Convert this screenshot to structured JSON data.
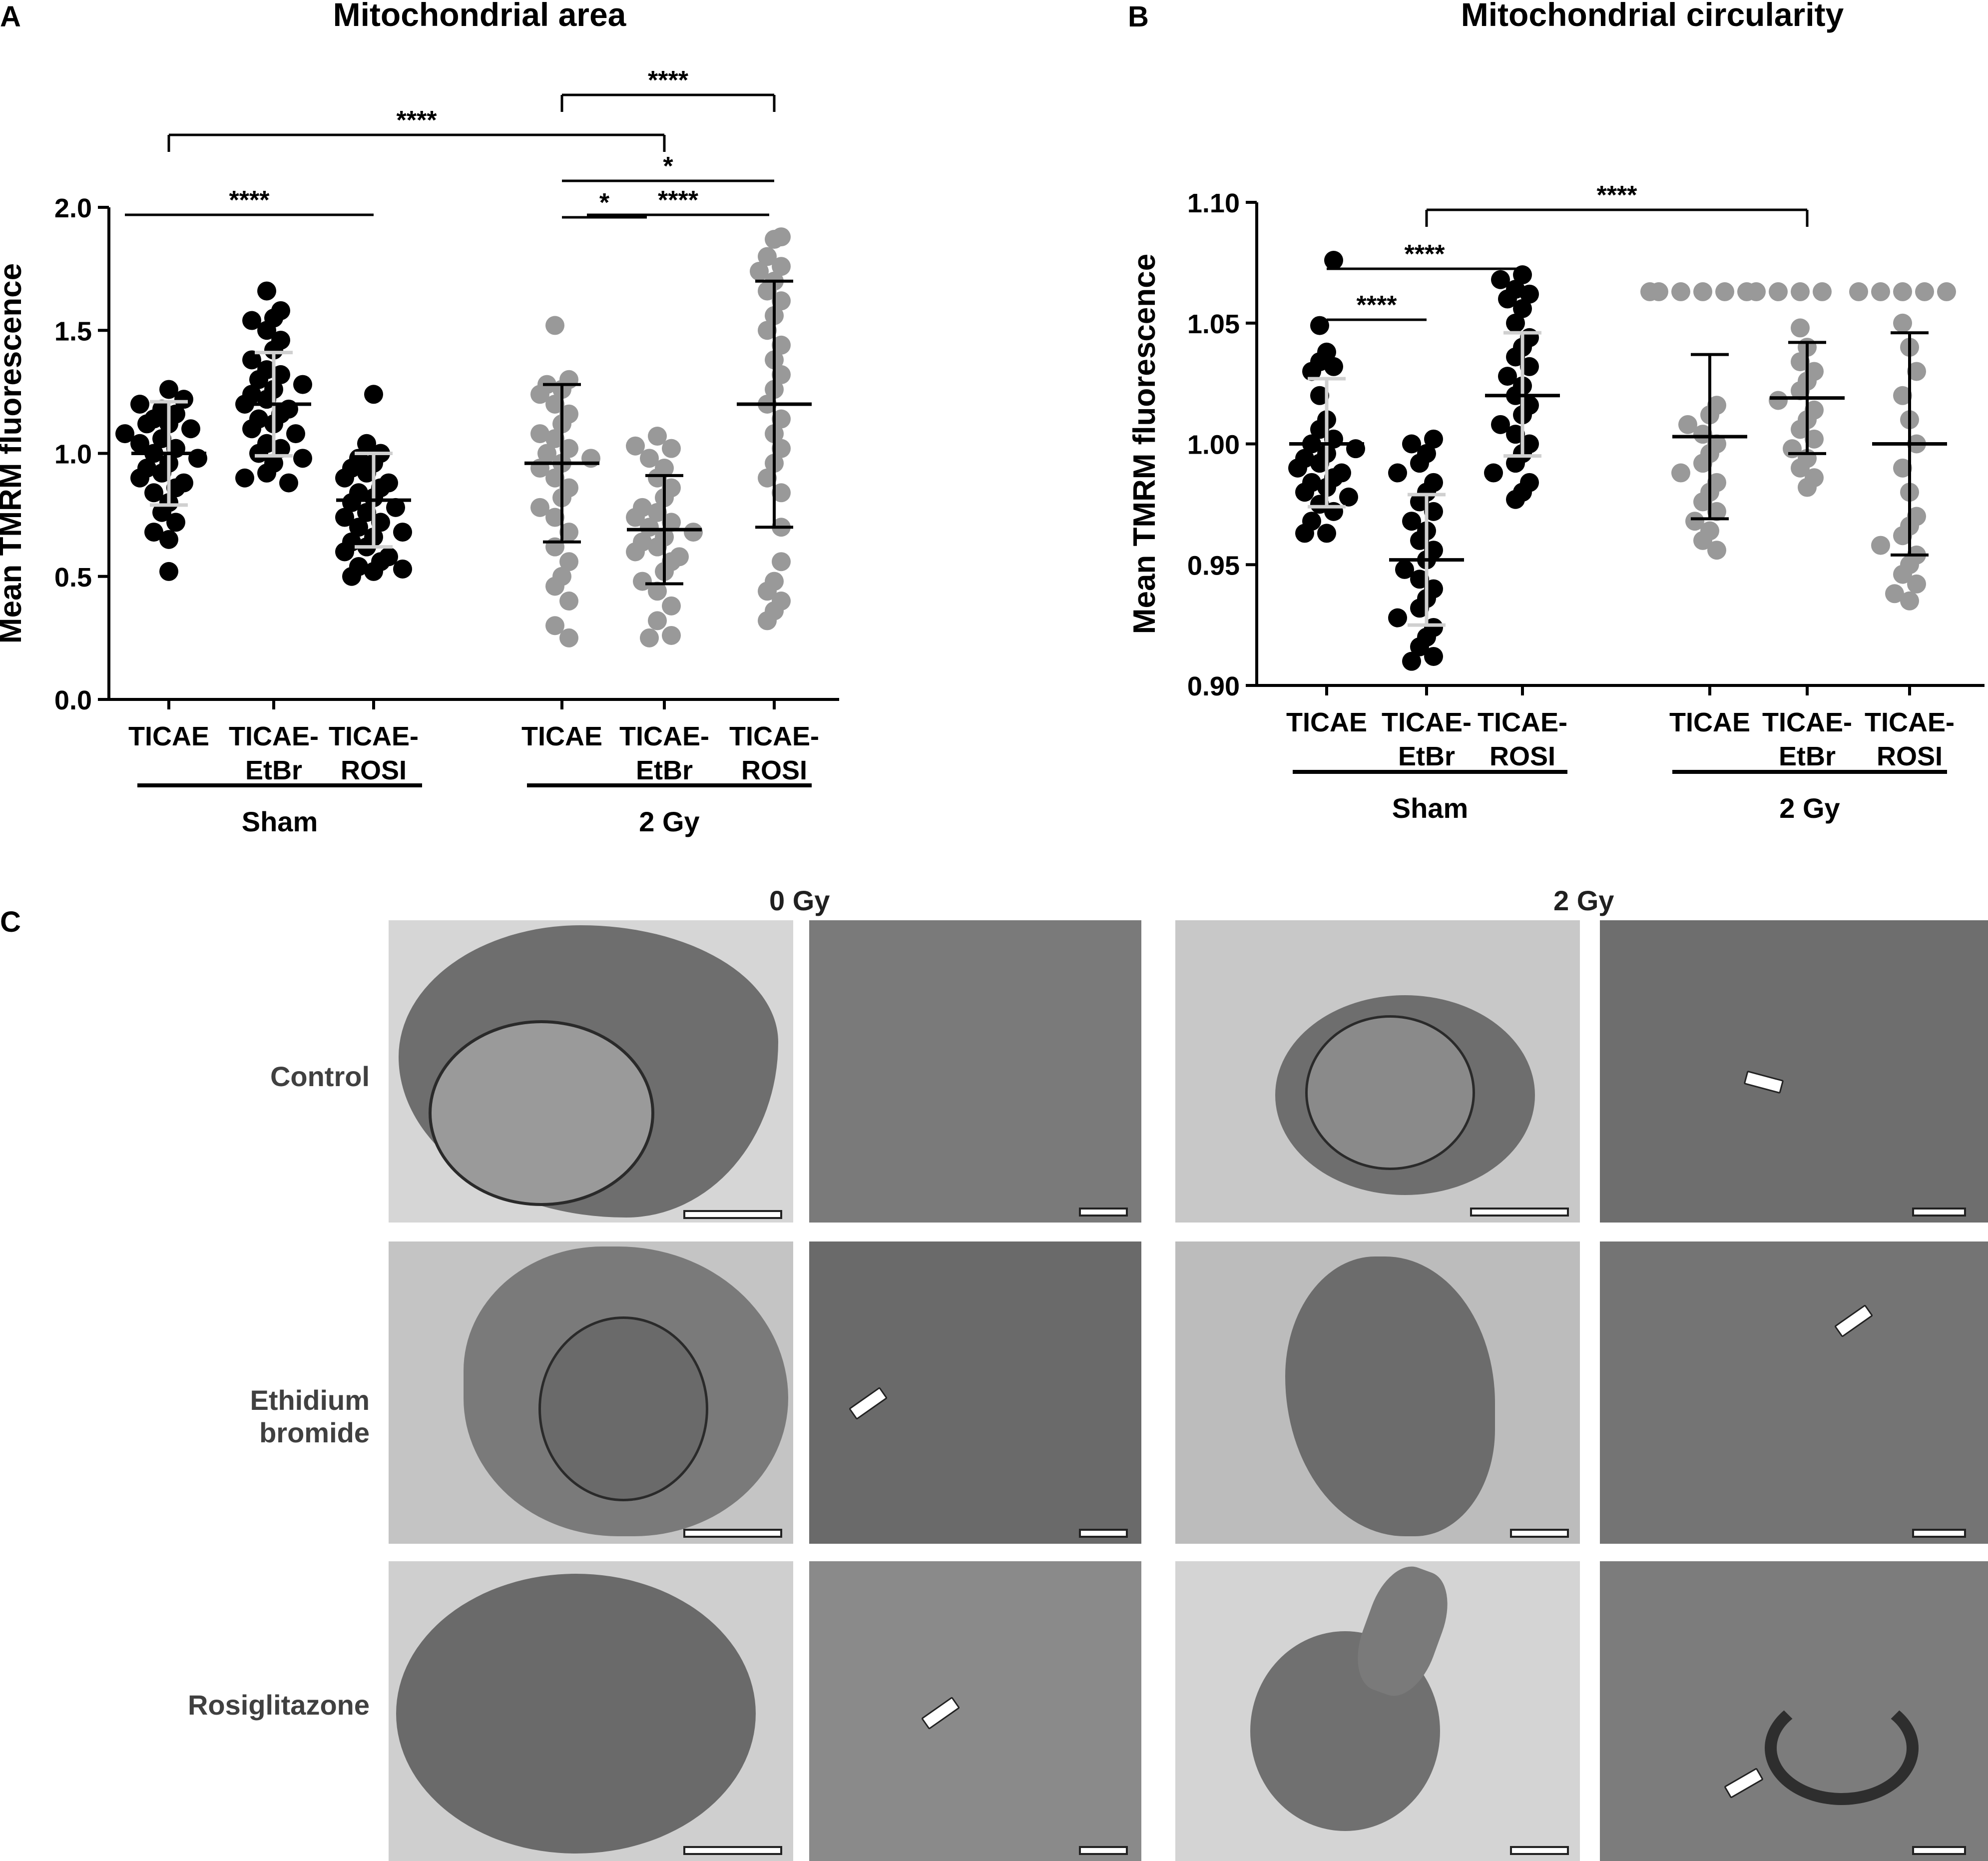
{
  "panels": {
    "a": {
      "letter": "A"
    },
    "b": {
      "letter": "B"
    },
    "c": {
      "letter": "C"
    }
  },
  "colors": {
    "sham_points": "#000000",
    "gy_points": "#999999",
    "sd_bars_sham": "#d0d0d0",
    "sd_bars_gy": "#000000"
  },
  "chart_data": [
    {
      "type": "scatter",
      "title": "Mitochondrial area",
      "ylabel": "Mean TMRM fluorescence",
      "xlabel": "",
      "ylim": [
        0.0,
        2.0
      ],
      "yticks": [
        "0.0",
        "0.5",
        "1.0",
        "1.5",
        "2.0"
      ],
      "groups": [
        "Sham",
        "2 Gy"
      ],
      "categories": [
        {
          "line1": "TICAE",
          "line2": "",
          "group": "Sham",
          "mean": 1.0,
          "sd_low": 0.79,
          "sd_high": 1.21,
          "values": [
            1.18,
            1.16,
            1.14,
            1.12,
            1.12,
            1.1,
            1.08,
            1.06,
            1.04,
            1.02,
            1.0,
            0.98,
            0.96,
            0.94,
            0.92,
            0.9,
            0.88,
            0.86,
            0.84,
            0.8,
            0.76,
            0.72,
            0.68,
            0.65,
            0.52,
            1.2,
            1.26,
            1.22
          ]
        },
        {
          "line1": "TICAE-",
          "line2": "EtBr",
          "group": "Sham",
          "mean": 1.2,
          "sd_low": 0.99,
          "sd_high": 1.41,
          "values": [
            1.66,
            1.58,
            1.55,
            1.54,
            1.5,
            1.46,
            1.42,
            1.38,
            1.34,
            1.32,
            1.3,
            1.28,
            1.26,
            1.24,
            1.22,
            1.2,
            1.18,
            1.16,
            1.14,
            1.12,
            1.1,
            1.08,
            1.04,
            1.02,
            1.0,
            0.98,
            0.96,
            0.92,
            0.9,
            0.88
          ]
        },
        {
          "line1": "TICAE-",
          "line2": "ROSI",
          "group": "Sham",
          "mean": 0.81,
          "sd_low": 0.62,
          "sd_high": 1.0,
          "values": [
            1.24,
            1.04,
            1.0,
            0.98,
            0.96,
            0.94,
            0.92,
            0.9,
            0.88,
            0.86,
            0.84,
            0.82,
            0.8,
            0.78,
            0.76,
            0.74,
            0.72,
            0.7,
            0.68,
            0.66,
            0.64,
            0.62,
            0.6,
            0.58,
            0.56,
            0.54,
            0.53,
            0.52,
            0.5
          ]
        },
        {
          "line1": "TICAE",
          "line2": "",
          "group": "2 Gy",
          "mean": 0.96,
          "sd_low": 0.64,
          "sd_high": 1.28,
          "values": [
            1.52,
            1.3,
            1.28,
            1.26,
            1.24,
            1.2,
            1.16,
            1.12,
            1.08,
            1.06,
            1.02,
            1.0,
            0.98,
            0.96,
            0.94,
            0.9,
            0.86,
            0.82,
            0.78,
            0.74,
            0.68,
            0.62,
            0.56,
            0.5,
            0.46,
            0.4,
            0.3,
            0.25
          ]
        },
        {
          "line1": "TICAE-",
          "line2": "EtBr",
          "group": "2 Gy",
          "mean": 0.69,
          "sd_low": 0.47,
          "sd_high": 0.91,
          "values": [
            1.07,
            1.03,
            1.02,
            0.98,
            0.94,
            0.9,
            0.86,
            0.82,
            0.78,
            0.76,
            0.74,
            0.72,
            0.7,
            0.68,
            0.66,
            0.64,
            0.62,
            0.6,
            0.58,
            0.56,
            0.52,
            0.48,
            0.44,
            0.38,
            0.32,
            0.26,
            0.25
          ]
        },
        {
          "line1": "TICAE-",
          "line2": "ROSI",
          "group": "2 Gy",
          "mean": 1.2,
          "sd_low": 0.7,
          "sd_high": 1.7,
          "values": [
            1.88,
            1.87,
            1.8,
            1.76,
            1.74,
            1.7,
            1.66,
            1.62,
            1.56,
            1.5,
            1.44,
            1.38,
            1.32,
            1.26,
            1.2,
            1.14,
            1.08,
            1.02,
            0.96,
            0.9,
            0.84,
            0.7,
            0.56,
            0.48,
            0.44,
            0.4,
            0.36,
            0.32
          ]
        }
      ],
      "significance": [
        {
          "label": "****",
          "from": 2,
          "to": 3
        },
        {
          "label": "****",
          "from": 4,
          "to": 6
        },
        {
          "label": "****",
          "from": 1,
          "to": 5
        },
        {
          "label": "*",
          "from": 4,
          "to": 5
        },
        {
          "label": "*",
          "from": 4,
          "to": 6
        },
        {
          "label": "****",
          "from": 5,
          "to": 6
        }
      ]
    },
    {
      "type": "scatter",
      "title": "Mitochondrial circularity",
      "ylabel": "Mean TMRM fluorescence",
      "xlabel": "",
      "ylim": [
        0.9,
        1.1
      ],
      "yticks": [
        "0.90",
        "0.95",
        "1.00",
        "1.05",
        "1.10"
      ],
      "groups": [
        "Sham",
        "2 Gy"
      ],
      "categories": [
        {
          "line1": "TICAE",
          "line2": "",
          "group": "Sham",
          "mean": 1.0,
          "sd_low": 0.974,
          "sd_high": 1.027,
          "values": [
            1.076,
            1.049,
            1.038,
            1.034,
            1.032,
            1.03,
            1.02,
            1.01,
            1.006,
            1.002,
            1.0,
            0.998,
            0.996,
            0.994,
            0.992,
            0.99,
            0.988,
            0.986,
            0.984,
            0.982,
            0.98,
            0.978,
            0.975,
            0.972,
            0.968,
            0.963,
            0.963
          ]
        },
        {
          "line1": "TICAE-",
          "line2": "EtBr",
          "group": "Sham",
          "mean": 0.952,
          "sd_low": 0.925,
          "sd_high": 0.979,
          "values": [
            1.002,
            1.0,
            0.996,
            0.992,
            0.988,
            0.984,
            0.98,
            0.976,
            0.972,
            0.968,
            0.964,
            0.96,
            0.956,
            0.952,
            0.948,
            0.944,
            0.94,
            0.936,
            0.932,
            0.928,
            0.924,
            0.92,
            0.916,
            0.912,
            0.91
          ]
        },
        {
          "line1": "TICAE-",
          "line2": "ROSI",
          "group": "Sham",
          "mean": 1.02,
          "sd_low": 0.995,
          "sd_high": 1.046,
          "values": [
            1.07,
            1.068,
            1.064,
            1.062,
            1.06,
            1.056,
            1.05,
            1.044,
            1.04,
            1.036,
            1.032,
            1.028,
            1.024,
            1.02,
            1.016,
            1.012,
            1.008,
            1.004,
            1.0,
            0.996,
            0.992,
            0.988,
            0.984,
            0.98,
            0.977
          ]
        },
        {
          "line1": "TICAE",
          "line2": "",
          "group": "2 Gy",
          "mean": 1.003,
          "sd_low": 0.969,
          "sd_high": 1.037,
          "values": [
            1.063,
            1.063,
            1.063,
            1.063,
            1.063,
            1.063,
            1.016,
            1.012,
            1.008,
            1.004,
            1.0,
            0.996,
            0.992,
            0.988,
            0.984,
            0.98,
            0.976,
            0.972,
            0.968,
            0.964,
            0.96,
            0.956
          ]
        },
        {
          "line1": "TICAE-",
          "line2": "EtBr",
          "group": "2 Gy",
          "mean": 1.019,
          "sd_low": 0.996,
          "sd_high": 1.042,
          "values": [
            1.063,
            1.063,
            1.063,
            1.063,
            1.048,
            1.04,
            1.034,
            1.03,
            1.026,
            1.022,
            1.018,
            1.014,
            1.01,
            1.006,
            1.002,
            0.998,
            0.994,
            0.99,
            0.986,
            0.982
          ]
        },
        {
          "line1": "TICAE-",
          "line2": "ROSI",
          "group": "2 Gy",
          "mean": 1.0,
          "sd_low": 0.954,
          "sd_high": 1.046,
          "values": [
            1.063,
            1.063,
            1.063,
            1.063,
            1.063,
            1.05,
            1.04,
            1.03,
            1.02,
            1.01,
            1.0,
            0.99,
            0.98,
            0.97,
            0.966,
            0.962,
            0.958,
            0.954,
            0.95,
            0.946,
            0.942,
            0.938,
            0.935
          ]
        }
      ],
      "significance": [
        {
          "label": "****",
          "from": 2,
          "to": 5
        },
        {
          "label": "****",
          "from": 1,
          "to": 3
        },
        {
          "label": "****",
          "from": 1,
          "to": 2
        }
      ]
    }
  ],
  "panel_c": {
    "col_labels": [
      "0 Gy",
      "2 Gy"
    ],
    "row_labels": [
      "Control",
      "Ethidium bromide",
      "Rosiglitazone"
    ]
  }
}
